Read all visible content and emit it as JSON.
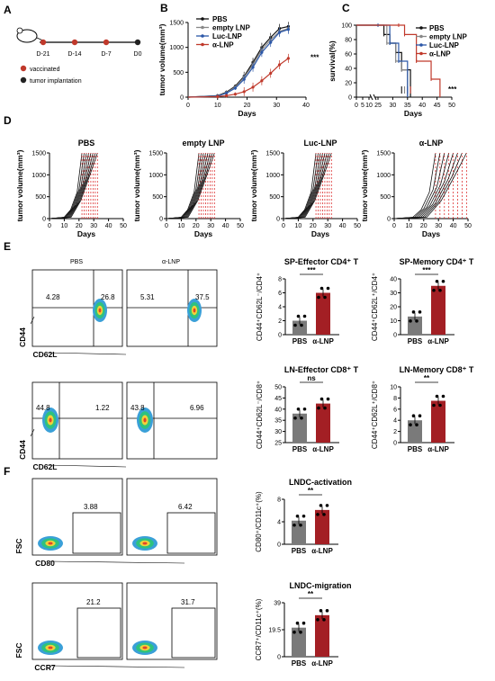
{
  "panels": {
    "A": "A",
    "B": "B",
    "C": "C",
    "D": "D",
    "E": "E",
    "F": "F"
  },
  "timeline": {
    "ticks": [
      "D-21",
      "D-14",
      "D-7",
      "D0"
    ],
    "legend": [
      "vaccinated",
      "tumor implantation"
    ],
    "colors": {
      "vaccinated": "#c0392b",
      "implant": "#222222"
    }
  },
  "colors": {
    "PBS": "#111111",
    "emptyLNP": "#888888",
    "LucLNP": "#2b57a8",
    "aLNP": "#c0392b",
    "barGray": "#7a7a7a",
    "barRed": "#a31f24"
  },
  "chart_data": [
    {
      "id": "B",
      "type": "line",
      "ylabel": "tumor volume(mm³)",
      "xlabel": "Days",
      "xlim": [
        0,
        40
      ],
      "ylim": [
        0,
        1500
      ],
      "xticks": [
        0,
        10,
        20,
        30,
        40
      ],
      "yticks": [
        0,
        500,
        1000,
        1500
      ],
      "x": [
        0,
        10,
        13,
        16,
        19,
        22,
        25,
        28,
        31,
        34
      ],
      "series": [
        {
          "name": "PBS",
          "values": [
            0,
            30,
            100,
            220,
            420,
            700,
            1000,
            1200,
            1380,
            1420
          ]
        },
        {
          "name": "empty LNP",
          "values": [
            0,
            25,
            90,
            200,
            400,
            650,
            950,
            1150,
            1320,
            1380
          ]
        },
        {
          "name": "Luc-LNP",
          "values": [
            0,
            20,
            80,
            180,
            360,
            600,
            900,
            1100,
            1300,
            1360
          ]
        },
        {
          "name": "α-LNP",
          "values": [
            0,
            10,
            30,
            60,
            110,
            200,
            330,
            480,
            650,
            780
          ]
        }
      ],
      "annotation": "***"
    },
    {
      "id": "C",
      "type": "line",
      "ylabel": "survival(%)",
      "xlabel": "Days",
      "xticks": [
        0,
        5,
        10,
        25,
        30,
        35,
        40,
        45,
        50
      ],
      "yticks": [
        0,
        20,
        40,
        60,
        80,
        100
      ],
      "series": [
        {
          "name": "PBS",
          "points": [
            [
              0,
              100
            ],
            [
              25,
              100
            ],
            [
              27,
              87
            ],
            [
              29,
              75
            ],
            [
              31,
              62
            ],
            [
              33,
              38
            ],
            [
              36,
              0
            ]
          ]
        },
        {
          "name": "empty LNP",
          "points": [
            [
              0,
              100
            ],
            [
              25,
              100
            ],
            [
              28,
              75
            ],
            [
              31,
              50
            ],
            [
              33,
              38
            ],
            [
              35,
              0
            ]
          ]
        },
        {
          "name": "Luc-LNP",
          "points": [
            [
              0,
              100
            ],
            [
              25,
              100
            ],
            [
              29,
              75
            ],
            [
              32,
              50
            ],
            [
              35,
              0
            ]
          ]
        },
        {
          "name": "α-LNP",
          "points": [
            [
              0,
              100
            ],
            [
              32,
              100
            ],
            [
              34,
              87
            ],
            [
              38,
              50
            ],
            [
              43,
              25
            ],
            [
              46,
              0
            ]
          ]
        }
      ],
      "annotation": "***"
    },
    {
      "id": "D",
      "type": "line",
      "groups": [
        "PBS",
        "empty LNP",
        "Luc-LNP",
        "α-LNP"
      ],
      "ylabel": "tumor volume(mm³)",
      "xlabel": "Days",
      "xticks": [
        0,
        10,
        20,
        30,
        40,
        50
      ],
      "yticks": [
        0,
        500,
        1000,
        1500
      ]
    },
    {
      "id": "E-bars",
      "type": "bar",
      "plots": [
        {
          "title": "SP-Effector CD4⁺ T",
          "ylabel": "CD44⁺CD62L⁻/CD4⁺",
          "categories": [
            "PBS",
            "α-LNP"
          ],
          "values": [
            2,
            6
          ],
          "ylim": [
            0,
            8
          ],
          "yticks": [
            0,
            2,
            4,
            6,
            8
          ],
          "sig": "***"
        },
        {
          "title": "SP-Memory CD4⁺ T",
          "ylabel": "CD44⁺CD62L⁺/CD4⁺",
          "categories": [
            "PBS",
            "α-LNP"
          ],
          "values": [
            13,
            35
          ],
          "ylim": [
            0,
            40
          ],
          "yticks": [
            0,
            10,
            20,
            30,
            40
          ],
          "sig": "***"
        },
        {
          "title": "LN-Effector CD8⁺ T",
          "ylabel": "CD44⁺CD62L⁻/CD8⁺",
          "categories": [
            "PBS",
            "α-LNP"
          ],
          "values": [
            38,
            42.5
          ],
          "ylim": [
            25,
            50
          ],
          "yticks": [
            25,
            30,
            35,
            40,
            45,
            50
          ],
          "sig": "ns"
        },
        {
          "title": "LN-Memory CD8⁺ T",
          "ylabel": "CD44⁺CD62L⁺/CD8⁺",
          "categories": [
            "PBS",
            "α-LNP"
          ],
          "values": [
            4,
            7.5
          ],
          "ylim": [
            0,
            10
          ],
          "yticks": [
            0,
            2,
            4,
            6,
            8,
            10
          ],
          "sig": "**"
        }
      ]
    },
    {
      "id": "F-bars",
      "type": "bar",
      "plots": [
        {
          "title": "LNDC-activation",
          "ylabel": "CD80⁺/CD11c⁺(%)",
          "categories": [
            "PBS",
            "α-LNP"
          ],
          "values": [
            4.2,
            6.1
          ],
          "sig": "**"
        },
        {
          "title": "LNDC-migration",
          "ylabel": "CCR7⁺/CD11c⁺(%)",
          "categories": [
            "PBS",
            "α-LNP"
          ],
          "values": [
            21,
            30
          ],
          "sig": "**"
        }
      ]
    }
  ],
  "flow": {
    "E": {
      "headers": [
        "PBS",
        "α-LNP"
      ],
      "xlabel": "CD62L",
      "ylabel": "CD44",
      "rows": [
        {
          "pbs": {
            "ul": "4.28",
            "ur": "26.8"
          },
          "alnp": {
            "ul": "5.31",
            "ur": "37.5"
          }
        },
        {
          "pbs": {
            "ul": "44.8",
            "ur": "1.22"
          },
          "alnp": {
            "ul": "43.8",
            "ur": "6.96"
          }
        }
      ]
    },
    "F": {
      "rows": [
        {
          "xlabel": "CD80",
          "ylabel": "FSC",
          "pbs": "3.88",
          "alnp": "6.42"
        },
        {
          "xlabel": "CCR7",
          "ylabel": "FSC",
          "pbs": "21.2",
          "alnp": "31.7"
        }
      ]
    }
  }
}
